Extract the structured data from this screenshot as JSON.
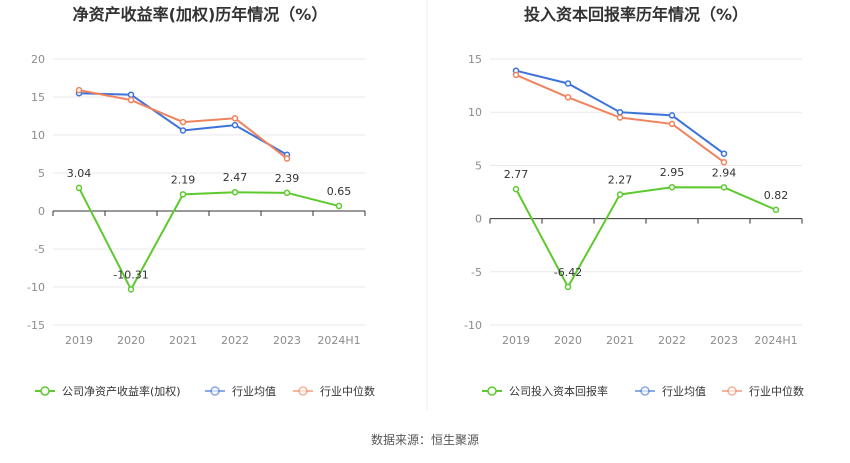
{
  "source_label": "数据来源：恒生聚源",
  "colors": {
    "company": "#5ec92e",
    "avg": "#3e72db",
    "median": "#f0835d",
    "grid": "#e8e8e8",
    "axis": "#333333",
    "tick": "#8c8c8c"
  },
  "legend_labels": {
    "avg": "行业均值",
    "median": "行业中位数"
  },
  "chart_data": [
    {
      "type": "line",
      "title": "净资产收益率(加权)历年情况（%）",
      "categories": [
        "2019",
        "2020",
        "2021",
        "2022",
        "2023",
        "2024H1"
      ],
      "yticks": [
        20,
        15,
        10,
        5,
        0,
        -5,
        -10,
        -15
      ],
      "ylim": [
        -15,
        20
      ],
      "series": [
        {
          "name": "公司净资产收益率(加权)",
          "role": "company",
          "values": [
            3.04,
            -10.31,
            2.19,
            2.47,
            2.39,
            0.65
          ],
          "labels": [
            "3.04",
            "-10.31",
            "2.19",
            "2.47",
            "2.39",
            "0.65"
          ]
        },
        {
          "name": "行业均值",
          "role": "avg",
          "values": [
            15.5,
            15.3,
            10.6,
            11.3,
            7.4,
            null
          ]
        },
        {
          "name": "行业中位数",
          "role": "median",
          "values": [
            15.9,
            14.6,
            11.7,
            12.2,
            6.9,
            null
          ]
        }
      ]
    },
    {
      "type": "line",
      "title": "投入资本回报率历年情况（%）",
      "categories": [
        "2019",
        "2020",
        "2021",
        "2022",
        "2023",
        "2024H1"
      ],
      "yticks": [
        15,
        10,
        5,
        0,
        -5,
        -10
      ],
      "ylim": [
        -10,
        15
      ],
      "series": [
        {
          "name": "公司投入资本回报率",
          "role": "company",
          "values": [
            2.77,
            -6.42,
            2.27,
            2.95,
            2.94,
            0.82
          ],
          "labels": [
            "2.77",
            "-6.42",
            "2.27",
            "2.95",
            "2.94",
            "0.82"
          ]
        },
        {
          "name": "行业均值",
          "role": "avg",
          "values": [
            13.9,
            12.7,
            10.0,
            9.7,
            6.1,
            null
          ]
        },
        {
          "name": "行业中位数",
          "role": "median",
          "values": [
            13.5,
            11.4,
            9.5,
            8.9,
            5.3,
            null
          ]
        }
      ]
    }
  ]
}
